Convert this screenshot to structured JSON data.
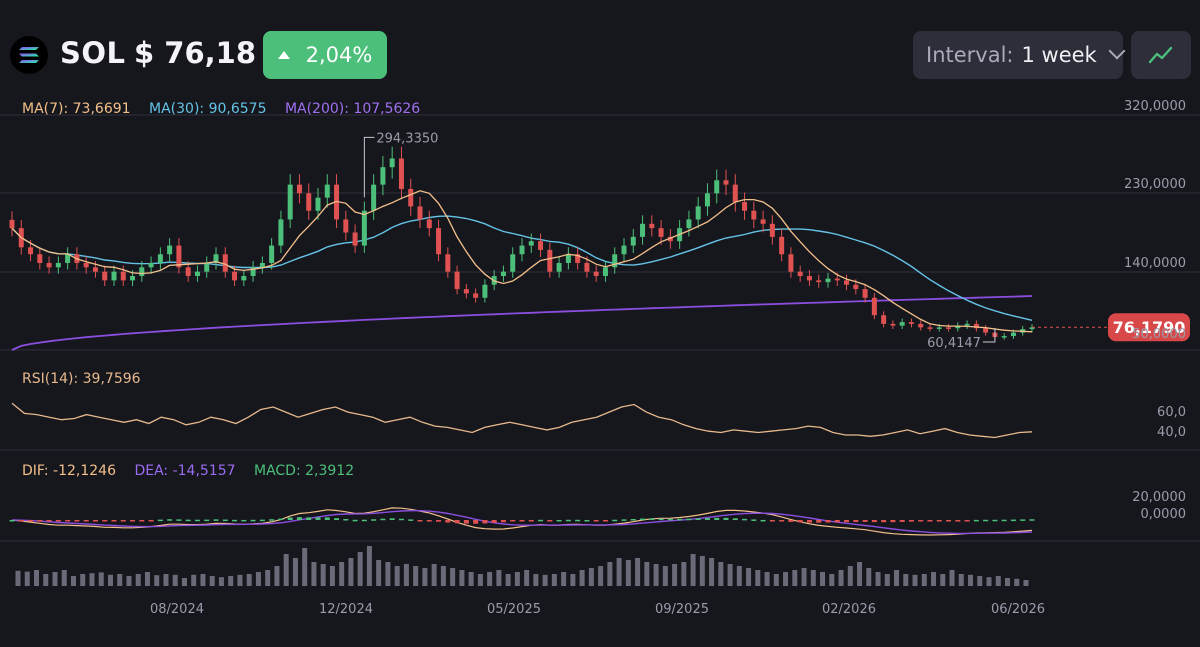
{
  "header": {
    "symbol": "SOL",
    "price": "$ 76,18",
    "change": "2,04%",
    "interval_label": "Interval:",
    "interval_value": "1 week",
    "icons": {
      "logo": "solana-logo-icon",
      "change": "triangle-up-icon",
      "interval": "chevron-down-icon",
      "chart_type": "line-chart-icon"
    }
  },
  "indicators": {
    "ma7": "MA(7): 73,6691",
    "ma30": "MA(30): 90,6575",
    "ma200": "MA(200): 107,5626",
    "rsi": "RSI(14): 39,7596",
    "dif": "DIF: -12,1246",
    "dea": "DEA: -14,5157",
    "macd": "MACD: 2,3912"
  },
  "colors": {
    "up": "#4cc07a",
    "down": "#e05252",
    "ma7": "#f3c08a",
    "ma30": "#64c3e6",
    "ma200": "#8b4fe0",
    "dea": "#8b4fe0",
    "rsi": "#e6b98d",
    "volume": "#6a6b78"
  },
  "chart_data": [
    {
      "type": "candlestick",
      "title": "SOL",
      "y_axis_labels": [
        "320,0000",
        "230,0000",
        "140,0000",
        "50,0000"
      ],
      "x_axis_labels": [
        "08/2024",
        "12/2024",
        "05/2025",
        "09/2025",
        "02/2026",
        "06/2026"
      ],
      "ylim": [
        50,
        320
      ],
      "price_axis_unit": "USD",
      "current_price_label": "76,1790",
      "current_price": 76.179,
      "high_annotation": {
        "label": "294,3350",
        "value": 294.335
      },
      "low_annotation": {
        "label": "60,4147",
        "value": 60.4147
      },
      "weekly_closes_approx": [
        190,
        168,
        160,
        150,
        145,
        150,
        160,
        150,
        145,
        140,
        130,
        140,
        130,
        135,
        145,
        150,
        160,
        170,
        145,
        135,
        140,
        150,
        160,
        140,
        130,
        135,
        145,
        150,
        170,
        200,
        240,
        230,
        210,
        225,
        240,
        200,
        185,
        170,
        210,
        240,
        260,
        270,
        235,
        215,
        200,
        190,
        160,
        140,
        120,
        115,
        110,
        125,
        135,
        140,
        160,
        170,
        175,
        165,
        140,
        150,
        160,
        150,
        140,
        135,
        145,
        160,
        170,
        180,
        195,
        190,
        180,
        175,
        190,
        200,
        215,
        230,
        245,
        240,
        220,
        210,
        200,
        195,
        180,
        160,
        140,
        135,
        130,
        128,
        132,
        130,
        125,
        120,
        110,
        90,
        80,
        78,
        82,
        80,
        76,
        75,
        76,
        75,
        78,
        80,
        75,
        70,
        65,
        66,
        70,
        74,
        76
      ],
      "series": [
        {
          "name": "MA(7)",
          "last": 73.6691
        },
        {
          "name": "MA(30)",
          "last": 90.6575
        },
        {
          "name": "MA(200)",
          "last": 107.5626
        }
      ]
    },
    {
      "type": "line",
      "title": "RSI(14)",
      "y_axis_labels": [
        "60,0",
        "40,0"
      ],
      "ylim": [
        30,
        70
      ],
      "values_approx": [
        63,
        55,
        54,
        52,
        50,
        51,
        54,
        52,
        50,
        48,
        50,
        47,
        52,
        50,
        46,
        48,
        52,
        50,
        47,
        52,
        58,
        60,
        56,
        52,
        55,
        58,
        60,
        56,
        54,
        52,
        48,
        50,
        52,
        48,
        45,
        44,
        42,
        40,
        44,
        46,
        48,
        46,
        44,
        42,
        44,
        48,
        50,
        52,
        56,
        60,
        62,
        56,
        52,
        50,
        46,
        43,
        41,
        40,
        42,
        41,
        40,
        41,
        42,
        43,
        45,
        44,
        40,
        38,
        38,
        37,
        38,
        40,
        42,
        39,
        41,
        43,
        40,
        38,
        37,
        36,
        38,
        40,
        40.5
      ],
      "last": 39.7596
    },
    {
      "type": "macd",
      "y_axis_labels": [
        "20,0000",
        "0,0000"
      ],
      "series": [
        {
          "name": "DIF",
          "last": -12.1246
        },
        {
          "name": "DEA",
          "last": -14.5157
        },
        {
          "name": "MACD",
          "last": 2.3912
        }
      ]
    },
    {
      "type": "bar",
      "title": "Volume",
      "values_relative": [
        0.38,
        0.36,
        0.4,
        0.3,
        0.35,
        0.4,
        0.25,
        0.3,
        0.32,
        0.34,
        0.28,
        0.3,
        0.25,
        0.3,
        0.35,
        0.27,
        0.3,
        0.28,
        0.2,
        0.28,
        0.3,
        0.25,
        0.22,
        0.25,
        0.28,
        0.3,
        0.35,
        0.4,
        0.5,
        0.8,
        0.7,
        0.95,
        0.6,
        0.55,
        0.5,
        0.6,
        0.7,
        0.85,
        1.0,
        0.65,
        0.6,
        0.5,
        0.55,
        0.5,
        0.45,
        0.55,
        0.5,
        0.45,
        0.4,
        0.35,
        0.3,
        0.35,
        0.4,
        0.3,
        0.35,
        0.4,
        0.3,
        0.28,
        0.3,
        0.35,
        0.3,
        0.4,
        0.45,
        0.5,
        0.6,
        0.7,
        0.65,
        0.7,
        0.6,
        0.55,
        0.5,
        0.55,
        0.6,
        0.8,
        0.75,
        0.7,
        0.6,
        0.55,
        0.5,
        0.45,
        0.4,
        0.35,
        0.3,
        0.35,
        0.4,
        0.45,
        0.4,
        0.35,
        0.3,
        0.4,
        0.5,
        0.6,
        0.45,
        0.35,
        0.3,
        0.4,
        0.3,
        0.28,
        0.3,
        0.35,
        0.3,
        0.4,
        0.3,
        0.28,
        0.25,
        0.22,
        0.25,
        0.2,
        0.18,
        0.15
      ]
    }
  ]
}
